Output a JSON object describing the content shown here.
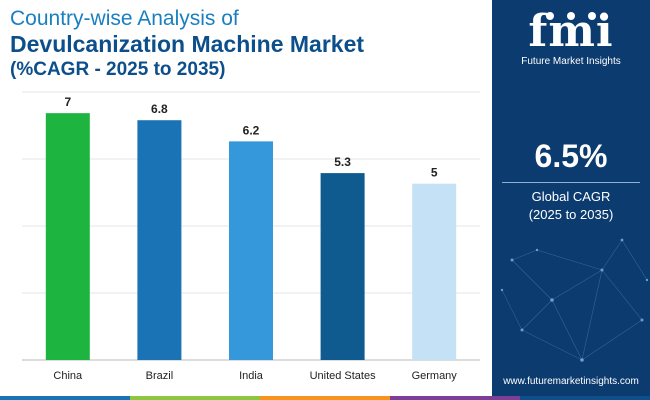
{
  "title": {
    "line1": "Country-wise Analysis of",
    "line2": "Devulcanization Machine Market",
    "line3": "(%CAGR - 2025 to 2035)"
  },
  "chart_data": {
    "type": "bar",
    "categories": [
      "China",
      "Brazil",
      "India",
      "United States",
      "Germany"
    ],
    "values": [
      7,
      6.8,
      6.2,
      5.3,
      5
    ],
    "colors": [
      "#1db440",
      "#1a73b5",
      "#3498db",
      "#0f5a8f",
      "#c5e1f5"
    ],
    "ylim": [
      0,
      7.6
    ],
    "grid": true,
    "xlabel": "",
    "ylabel": ""
  },
  "panel": {
    "logo_mark": "fmi",
    "logo_text": "Future Market Insights",
    "cagr_value": "6.5%",
    "cagr_label_line1": "Global CAGR",
    "cagr_label_line2": "(2025 to 2035)",
    "website": "www.futuremarketinsights.com",
    "bg_color": "#0b3b6f"
  },
  "bottom_strip": {
    "colors": [
      "#1a73b5",
      "#8dc63f",
      "#f7941d",
      "#7b3f98",
      "#0d4f8b"
    ]
  }
}
